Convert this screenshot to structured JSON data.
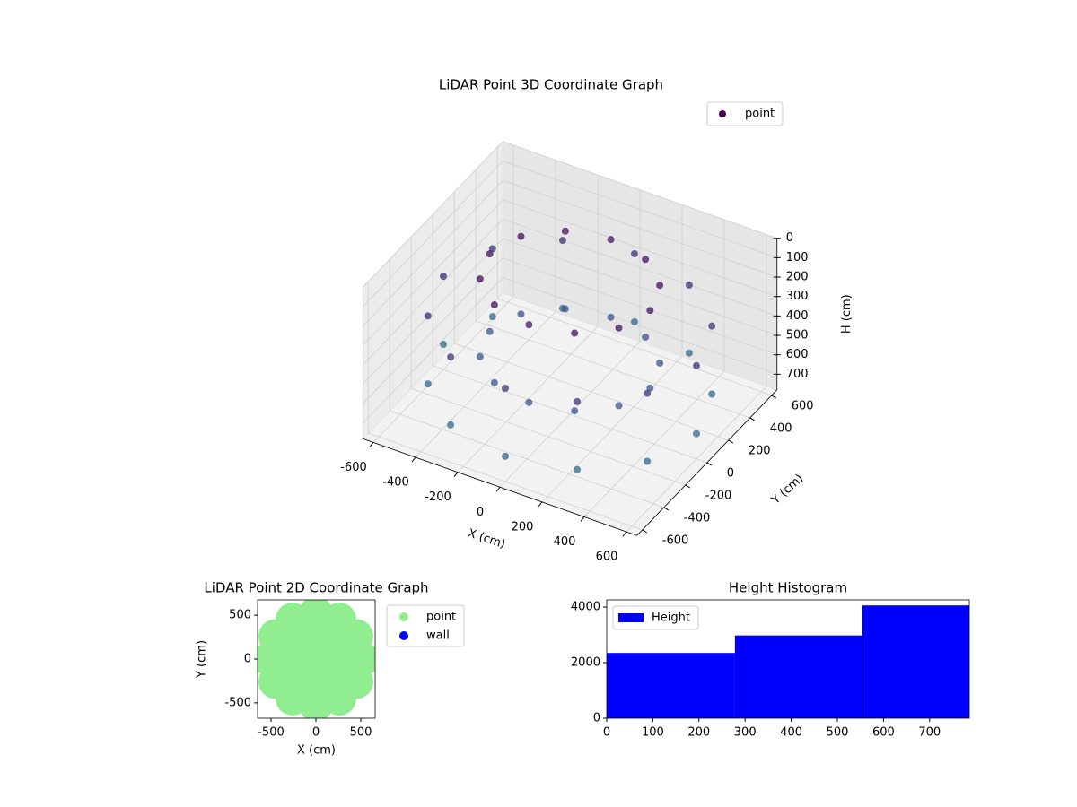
{
  "chart_data": [
    {
      "type": "scatter3d",
      "title": "LiDAR Point 3D Coordinate Graph",
      "xlabel": "X (cm)",
      "ylabel": "Y (cm)",
      "zlabel": "H (cm)",
      "series": [
        {
          "name": "point",
          "colormap": "viridis",
          "x": [
            600,
            520,
            300,
            0,
            -300,
            -520,
            -600,
            -520,
            -300,
            0,
            300,
            520,
            600,
            520,
            300,
            0,
            -300,
            -520,
            -600,
            -520,
            -300,
            0,
            300,
            520,
            380,
            329,
            190,
            0,
            -190,
            -329,
            -380,
            -329,
            -190,
            0,
            190,
            329,
            380,
            329,
            190,
            0,
            -190,
            -329,
            -380,
            -329,
            -190,
            0,
            190,
            329
          ],
          "y": [
            0,
            300,
            520,
            600,
            520,
            300,
            0,
            -300,
            -520,
            -600,
            -520,
            -300,
            0,
            300,
            520,
            600,
            520,
            300,
            0,
            -300,
            -520,
            -600,
            -520,
            -300,
            0,
            190,
            329,
            380,
            329,
            190,
            0,
            -190,
            -329,
            -380,
            -329,
            -190,
            0,
            190,
            329,
            380,
            329,
            190,
            0,
            -190,
            -329,
            -380,
            -329,
            -190
          ],
          "z": [
            650,
            650,
            650,
            650,
            650,
            650,
            650,
            650,
            650,
            650,
            650,
            650,
            300,
            300,
            300,
            300,
            300,
            300,
            300,
            300,
            300,
            300,
            300,
            300,
            100,
            100,
            100,
            100,
            100,
            100,
            100,
            100,
            100,
            100,
            100,
            100,
            500,
            500,
            500,
            500,
            500,
            500,
            500,
            500,
            500,
            500,
            500,
            500
          ]
        }
      ],
      "xlim": [
        -650,
        650
      ],
      "ylim": [
        -650,
        650
      ],
      "zlim": [
        0,
        780
      ],
      "z_inverted": true,
      "xticks": [
        -600,
        -400,
        -200,
        0,
        200,
        400,
        600
      ],
      "yticks": [
        -600,
        -400,
        -200,
        0,
        200,
        400,
        600
      ],
      "zticks": [
        0,
        100,
        200,
        300,
        400,
        500,
        600,
        700
      ],
      "grid": true,
      "legend": "upper right"
    },
    {
      "type": "scatter",
      "title": "LiDAR Point 2D Coordinate Graph",
      "xlabel": "X (cm)",
      "ylabel": "Y (cm)",
      "series": [
        {
          "name": "point",
          "color": "#90ee90",
          "x": [
            520,
            450,
            260,
            0,
            -260,
            -450,
            -520,
            -450,
            -260,
            0,
            260,
            450,
            280,
            140,
            -140,
            -280,
            -140,
            140,
            0
          ],
          "y": [
            0,
            260,
            450,
            520,
            450,
            260,
            0,
            -260,
            -450,
            -520,
            -450,
            -260,
            0,
            242,
            242,
            0,
            -242,
            -242,
            0
          ]
        },
        {
          "name": "wall",
          "color": "#0000ff",
          "x": [],
          "y": []
        }
      ],
      "xlim": [
        -650,
        660
      ],
      "ylim": [
        -675,
        675
      ],
      "xticks": [
        -500,
        0,
        500
      ],
      "yticks": [
        -500,
        0,
        500
      ],
      "legend": "outside right"
    },
    {
      "type": "histogram",
      "title": "Height Histogram",
      "legend_label": "Height",
      "color": "#0000ff",
      "bins": [
        0,
        278,
        554,
        786
      ],
      "counts": [
        2350,
        2980,
        4060
      ],
      "xlim": [
        0,
        786
      ],
      "ylim": [
        0,
        4260
      ],
      "xticks": [
        0,
        100,
        200,
        300,
        400,
        500,
        600,
        700
      ],
      "yticks": [
        0,
        2000,
        4000
      ],
      "legend": "upper left"
    }
  ]
}
